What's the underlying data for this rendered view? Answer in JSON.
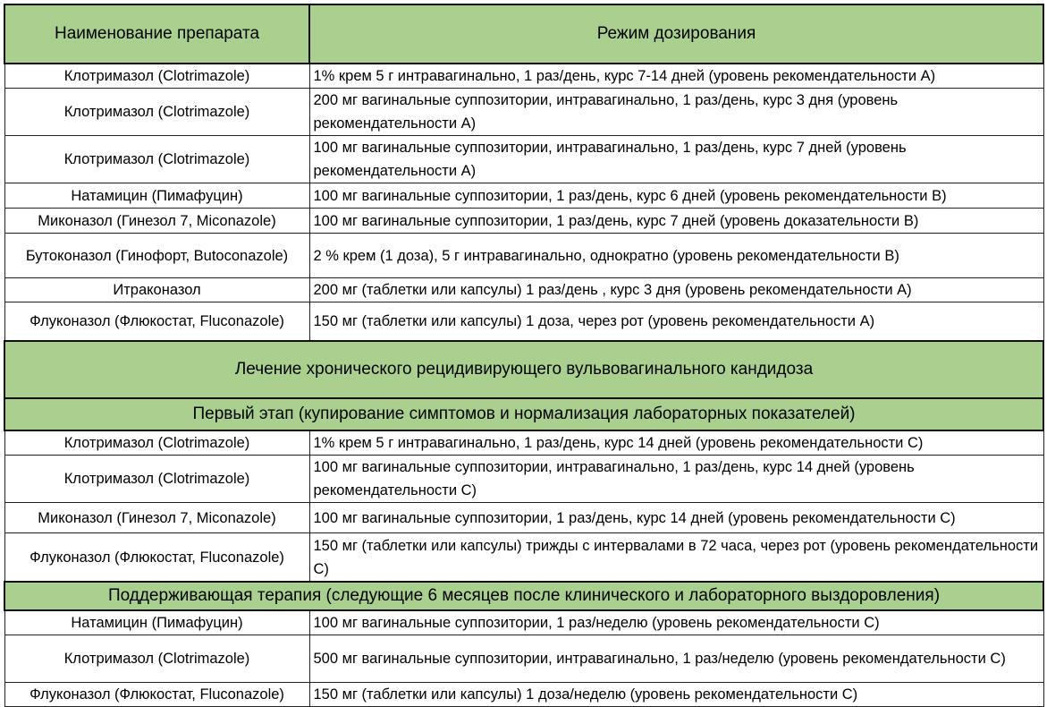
{
  "header": {
    "col1": "Наименование препарата",
    "col2": "Режим дозирования"
  },
  "acute": [
    {
      "name": "Клотримазол (Clotrimazole)",
      "dose": "1% крем 5 г интравагинально, 1 раз/день, курс 7-14 дней (уровень рекомендательности А)"
    },
    {
      "name": "Клотримазол (Clotrimazole)",
      "dose": "200 мг вагинальные суппозитории, интравагинально, 1 раз/день, курс 3 дня (уровень рекомендательности А)"
    },
    {
      "name": "Клотримазол (Clotrimazole)",
      "dose": "100 мг вагинальные суппозитории, интравагинально, 1 раз/день, курс 7 дней (уровень рекомендательности А)"
    },
    {
      "name": "Натамицин (Пимафуцин)",
      "dose": "100 мг вагинальные суппозитории, 1 раз/день, курс 6 дней (уровень рекомендательности В)"
    },
    {
      "name": "Миконазол (Гинезол 7, Miconazole)",
      "dose": "100 мг вагинальные суппозитории, 1 раз/день, курс 7 дней (уровень доказательности В)"
    },
    {
      "name": "Бутоконазол (Гинофорт, Butoconazole)",
      "dose": "2 % крем (1 доза), 5 г интравагинально, однократно (уровень рекомендательности В)"
    },
    {
      "name": "Итраконазол",
      "dose": "200 мг (таблетки или капсулы) 1 раз/день , курс 3 дня (уровень рекомендательности А)"
    },
    {
      "name": "Флуконазол (Флюкостат, Fluconazole)",
      "dose": "150 мг (таблетки или капсулы) 1 доза, через рот (уровень рекомендательности А)"
    }
  ],
  "chronic_title": "Лечение хронического рецидивирующего вульвовагинального кандидоза",
  "stage1_title": "Первый этап (купирование симптомов и нормализация лабораторных показателей)",
  "stage1": [
    {
      "name": "Клотримазол (Clotrimazole)",
      "dose": "1% крем 5 г интравагинально, 1 раз/день, курс 14 дней (уровень рекомендательности С)"
    },
    {
      "name": "Клотримазол (Clotrimazole)",
      "dose": "100 мг вагинальные суппозитории, интравагинально, 1 раз/день, курс 14 дней (уровень рекомендательности С)"
    },
    {
      "name": "Миконазол (Гинезол 7, Miconazole)",
      "dose": "100 мг вагинальные суппозитории, 1 раз/день, курс 14 дней (уровень рекомендательности С)"
    },
    {
      "name": "Флуконазол (Флюкостат, Fluconazole)",
      "dose": "150 мг (таблетки или капсулы) трижды с интервалами в 72 часа, через рот (уровень рекомендательности С)"
    }
  ],
  "stage2_title": "Поддерживающая терапия (следующие 6 месяцев после клинического и лабораторного выздоровления)",
  "stage2": [
    {
      "name": "Натамицин (Пимафуцин)",
      "dose": "100 мг вагинальные суппозитории, 1 раз/неделю (уровень рекомендательности С)"
    },
    {
      "name": "Клотримазол (Clotrimazole)",
      "dose": "500 мг вагинальные суппозитории, интравагинально, 1 раз/неделю (уровень рекомендательности С)"
    },
    {
      "name": "Флуконазол (Флюкостат, Fluconazole)",
      "dose": "150 мг (таблетки или капсулы) 1 доза/неделю (уровень рекомендательности С)"
    }
  ]
}
